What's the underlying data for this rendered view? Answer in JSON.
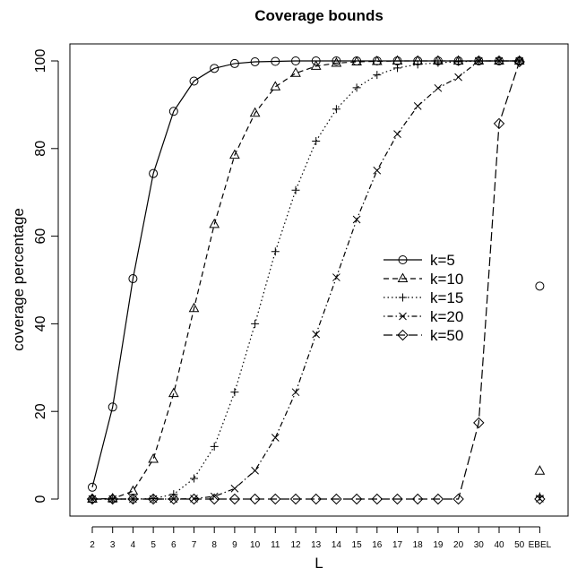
{
  "chart_data": {
    "type": "line",
    "title": "Coverage bounds",
    "xlabel": "L",
    "ylabel": "coverage percentage",
    "categories": [
      "2",
      "3",
      "4",
      "5",
      "6",
      "7",
      "8",
      "9",
      "10",
      "11",
      "12",
      "13",
      "14",
      "15",
      "16",
      "17",
      "18",
      "19",
      "20",
      "30",
      "40",
      "50",
      "EBEL"
    ],
    "ylim": [
      0,
      100
    ],
    "yticks": [
      0,
      20,
      40,
      60,
      80,
      100
    ],
    "grid": false,
    "legend_position": "right-center",
    "series": [
      {
        "name": "k=5",
        "marker": "circle",
        "dash": "solid",
        "values": [
          2.7,
          21,
          50.3,
          74.3,
          88.5,
          95.4,
          98.3,
          99.4,
          99.8,
          99.9,
          100,
          100,
          100,
          100,
          100,
          100,
          100,
          100,
          100,
          100,
          100,
          100,
          48.6
        ]
      },
      {
        "name": "k=10",
        "marker": "triangle",
        "dash": "dashed",
        "values": [
          0,
          0.1,
          1.8,
          9.1,
          24.1,
          43.5,
          62.7,
          78.5,
          88.1,
          94.1,
          97.2,
          98.8,
          99.5,
          99.8,
          99.9,
          100,
          100,
          100,
          100,
          100,
          100,
          100,
          6.4
        ]
      },
      {
        "name": "k=15",
        "marker": "plus",
        "dash": "dotted",
        "values": [
          0,
          0,
          0,
          0.1,
          1.1,
          4.7,
          12,
          24.4,
          40,
          56.5,
          70.5,
          81.7,
          89,
          93.9,
          96.8,
          98.4,
          99.2,
          99.6,
          99.8,
          100,
          100,
          100,
          0.6
        ]
      },
      {
        "name": "k=20",
        "marker": "x",
        "dash": "dotdash",
        "values": [
          0,
          0,
          0,
          0,
          0,
          0.1,
          0.6,
          2.4,
          6.5,
          14,
          24.4,
          37.6,
          50.6,
          63.8,
          75,
          83.3,
          89.7,
          93.8,
          96.3,
          100,
          100,
          100,
          0.1
        ]
      },
      {
        "name": "k=50",
        "marker": "diamond",
        "dash": "longdash",
        "values": [
          0,
          0,
          0,
          0,
          0,
          0,
          0,
          0,
          0,
          0,
          0,
          0,
          0,
          0,
          0,
          0,
          0,
          0,
          0,
          17.4,
          85.7,
          99.8,
          0
        ]
      }
    ]
  }
}
